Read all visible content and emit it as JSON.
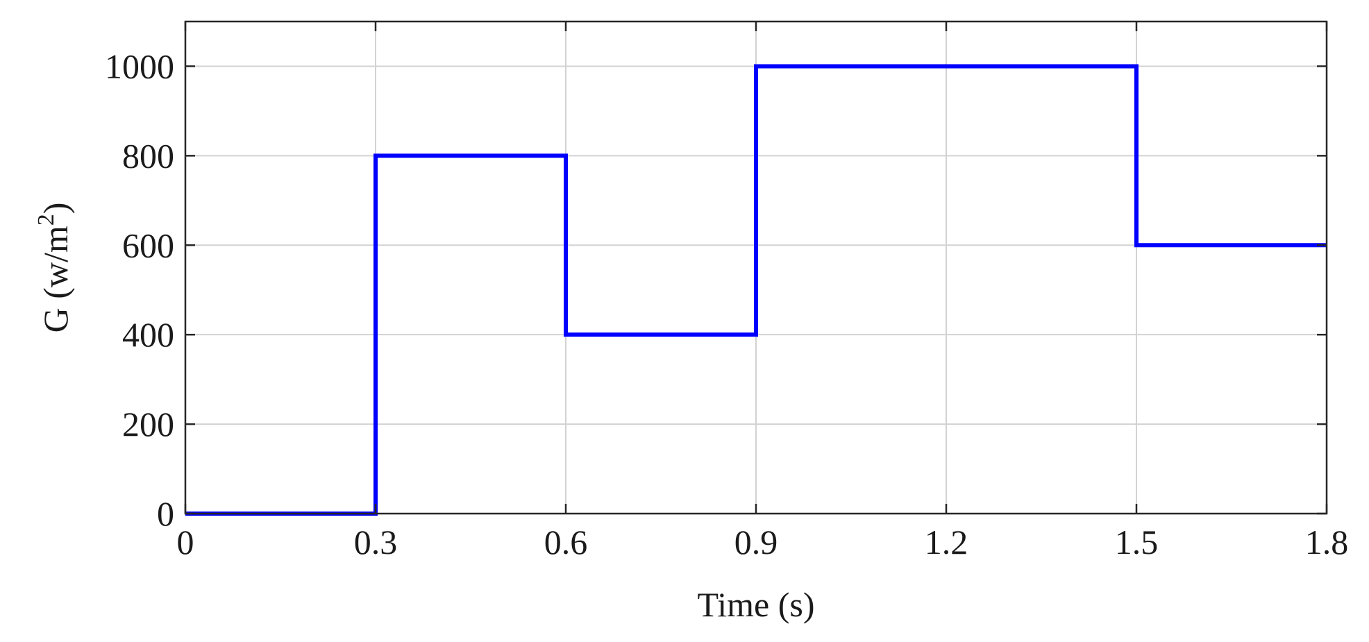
{
  "chart_data": {
    "type": "line",
    "title": "",
    "xlabel": "Time (s)",
    "ylabel": {
      "base": "G (w/m",
      "superscript": "2",
      "close": ")"
    },
    "xlim": [
      0,
      1.8
    ],
    "ylim": [
      0,
      1100
    ],
    "xticks": [
      0,
      0.3,
      0.6,
      0.9,
      1.2,
      1.5,
      1.8
    ],
    "xtick_labels": [
      "0",
      "0.3",
      "0.6",
      "0.9",
      "1.2",
      "1.5",
      "1.8"
    ],
    "yticks": [
      0,
      200,
      400,
      600,
      800,
      1000
    ],
    "ytick_labels": [
      "0",
      "200",
      "400",
      "600",
      "800",
      "1000"
    ],
    "grid": true,
    "legend": "none",
    "series": [
      {
        "color": "#0000ff",
        "style": "step",
        "x": [
          0,
          0.3,
          0.3,
          0.6,
          0.6,
          0.9,
          0.9,
          1.5,
          1.5,
          1.8
        ],
        "y": [
          0,
          0,
          800,
          800,
          400,
          400,
          1000,
          1000,
          600,
          600
        ]
      }
    ]
  }
}
